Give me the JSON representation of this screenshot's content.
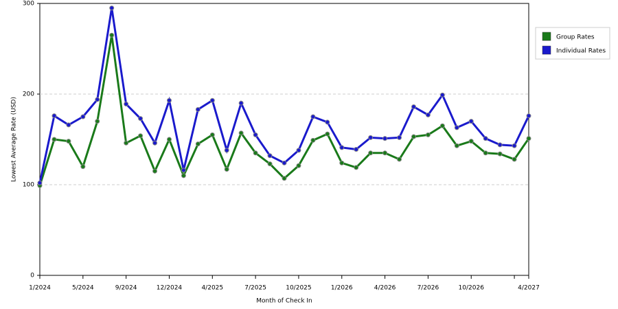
{
  "chart_data": {
    "type": "line",
    "y_label": "Lowest Average Rate (USD)",
    "x_label": "Month of Check In",
    "categories": [
      "1/2024",
      null,
      null,
      "5/2024",
      null,
      null,
      "9/2024",
      null,
      null,
      "12/2024",
      null,
      null,
      "4/2025",
      null,
      null,
      "7/2025",
      null,
      null,
      "10/2025",
      null,
      null,
      "1/2026",
      null,
      null,
      "4/2026",
      null,
      null,
      "7/2026",
      null,
      null,
      "10/2026",
      null,
      null,
      null,
      "4/2027"
    ],
    "series": [
      {
        "name": "Group Rates",
        "color": "#1a7a1a",
        "values": [
          99,
          150,
          148,
          120,
          170,
          265,
          146,
          154,
          115,
          150,
          110,
          145,
          155,
          117,
          157,
          135,
          123,
          107,
          121,
          149,
          156,
          124,
          119,
          135,
          135,
          128,
          153,
          155,
          165,
          143,
          148,
          135,
          134,
          128,
          151
        ]
      },
      {
        "name": "Individual Rates",
        "color": "#1a1acc",
        "values": [
          102,
          176,
          166,
          175,
          194,
          295,
          189,
          173,
          146,
          193,
          116,
          183,
          193,
          138,
          190,
          155,
          132,
          124,
          138,
          175,
          169,
          141,
          139,
          152,
          151,
          152,
          186,
          177,
          199,
          163,
          170,
          151,
          144,
          143,
          176
        ]
      }
    ],
    "ylim": [
      0,
      300
    ],
    "yticks": [
      0,
      100,
      200,
      300
    ],
    "grid": true,
    "legend": "right"
  }
}
